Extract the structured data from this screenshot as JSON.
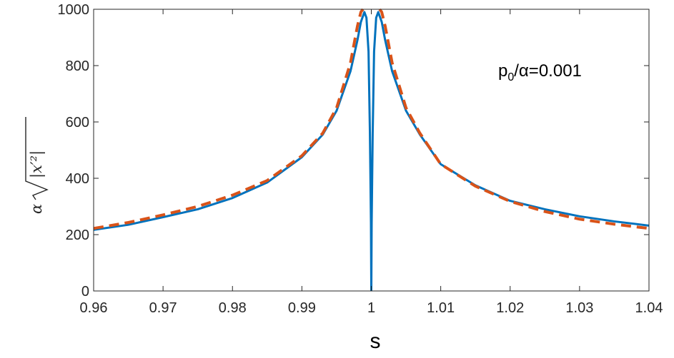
{
  "chart_data": {
    "type": "line",
    "title": "",
    "xlabel": "s",
    "ylabel": {
      "prefix": "α",
      "radicand": "|x′²|"
    },
    "xlim": [
      0.96,
      1.04
    ],
    "ylim": [
      0,
      1000
    ],
    "x_ticks": [
      0.96,
      0.97,
      0.98,
      0.99,
      1,
      1.01,
      1.02,
      1.03,
      1.04
    ],
    "x_tick_labels": [
      "0.96",
      "0.97",
      "0.98",
      "0.99",
      "1",
      "1.01",
      "1.02",
      "1.03",
      "1.04"
    ],
    "y_ticks": [
      0,
      200,
      400,
      600,
      800,
      1000
    ],
    "y_tick_labels": [
      "0",
      "200",
      "400",
      "600",
      "800",
      "1000"
    ],
    "grid": false,
    "legend": "none",
    "annotation": {
      "base": "p",
      "sub": "0",
      "rest": "/α=0.001"
    },
    "series": [
      {
        "color": "#0072BD",
        "style": "solid",
        "x": [
          0.96,
          0.965,
          0.97,
          0.975,
          0.98,
          0.985,
          0.99,
          0.993,
          0.995,
          0.997,
          0.998,
          0.9985,
          0.999,
          0.9993,
          0.9996,
          0.9998,
          0.99995,
          1.0,
          1.00005,
          1.0002,
          1.0004,
          1.0007,
          1.001,
          1.0015,
          1.002,
          1.003,
          1.005,
          1.007,
          1.01,
          1.015,
          1.02,
          1.025,
          1.03,
          1.035,
          1.04
        ],
        "y": [
          217,
          235,
          262,
          290,
          330,
          385,
          475,
          555,
          640,
          780,
          890,
          955,
          990,
          970,
          850,
          560,
          240,
          0,
          240,
          560,
          850,
          970,
          990,
          955,
          890,
          780,
          640,
          555,
          450,
          375,
          320,
          290,
          265,
          247,
          232
        ]
      },
      {
        "color": "#D95319",
        "style": "dashed",
        "x": [
          0.96,
          0.965,
          0.97,
          0.975,
          0.98,
          0.985,
          0.99,
          0.993,
          0.995,
          0.997,
          0.998,
          0.9985,
          0.9988,
          1.0012,
          1.0015,
          1.002,
          1.003,
          1.005,
          1.007,
          1.01,
          1.015,
          1.02,
          1.025,
          1.03,
          1.035,
          1.04
        ],
        "y": [
          222,
          243,
          270,
          300,
          340,
          392,
          480,
          560,
          650,
          810,
          940,
          990,
          1000,
          1000,
          990,
          940,
          810,
          650,
          560,
          450,
          372,
          318,
          282,
          255,
          237,
          222
        ],
        "segments": [
          [
            0,
            12
          ],
          [
            13,
            25
          ]
        ]
      }
    ]
  }
}
